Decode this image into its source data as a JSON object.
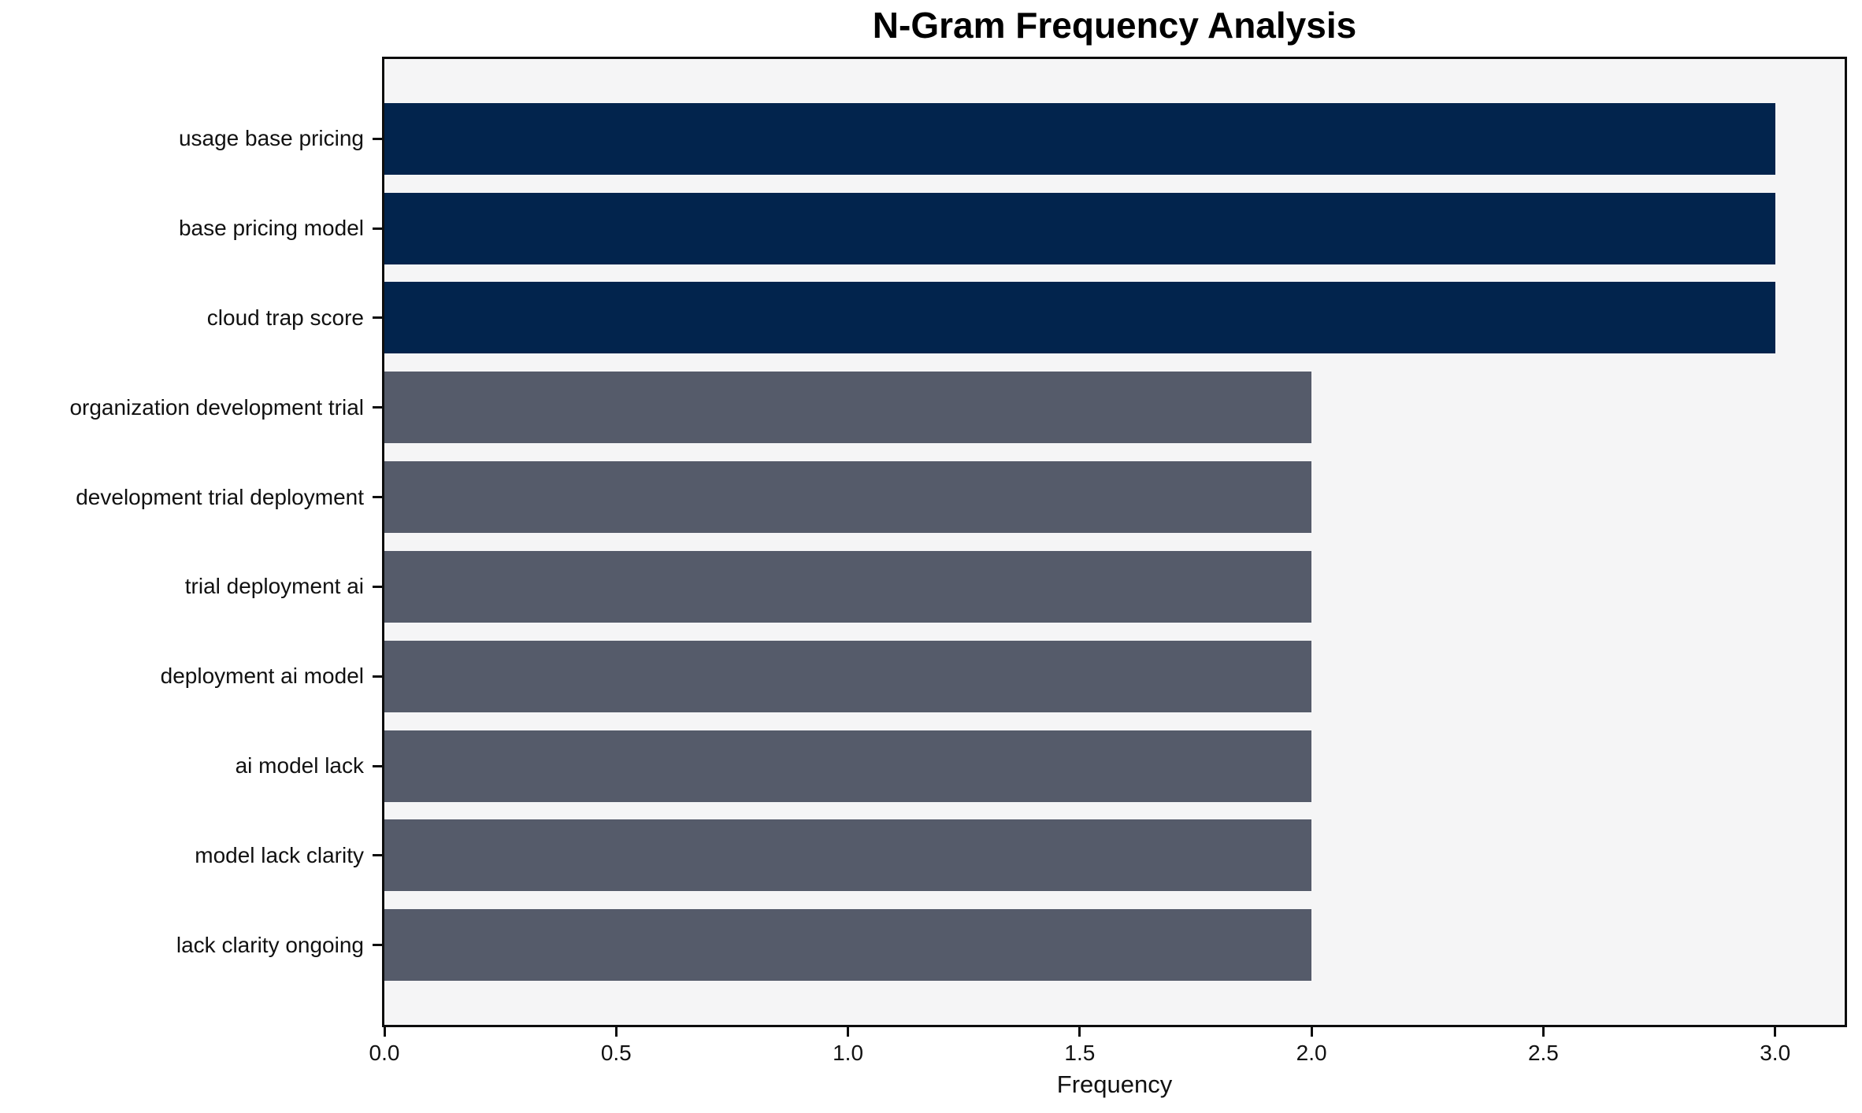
{
  "title": "N-Gram Frequency Analysis",
  "colors": {
    "high_bar": "#02244D",
    "low_bar": "#555B6A",
    "plot_background": "#F5F5F6",
    "page_background": "#FFFFFF",
    "spine": "#0D0D0D",
    "text": "#111111"
  },
  "chart_data": {
    "type": "bar",
    "orientation": "horizontal",
    "title": "N-Gram Frequency Analysis",
    "xlabel": "Frequency",
    "ylabel": "",
    "categories": [
      "usage base pricing",
      "base pricing model",
      "cloud trap score",
      "organization development trial",
      "development trial deployment",
      "trial deployment ai",
      "deployment ai model",
      "ai model lack",
      "model lack clarity",
      "lack clarity ongoing"
    ],
    "values": [
      3,
      3,
      3,
      2,
      2,
      2,
      2,
      2,
      2,
      2
    ],
    "bar_colors": [
      "#02244D",
      "#02244D",
      "#02244D",
      "#555B6A",
      "#555B6A",
      "#555B6A",
      "#555B6A",
      "#555B6A",
      "#555B6A",
      "#555B6A"
    ],
    "xlim": [
      0,
      3.15
    ],
    "xticks": [
      0.0,
      0.5,
      1.0,
      1.5,
      2.0,
      2.5,
      3.0
    ],
    "xtick_labels": [
      "0.0",
      "0.5",
      "1.0",
      "1.5",
      "2.0",
      "2.5",
      "3.0"
    ],
    "grid": false,
    "legend": null
  }
}
